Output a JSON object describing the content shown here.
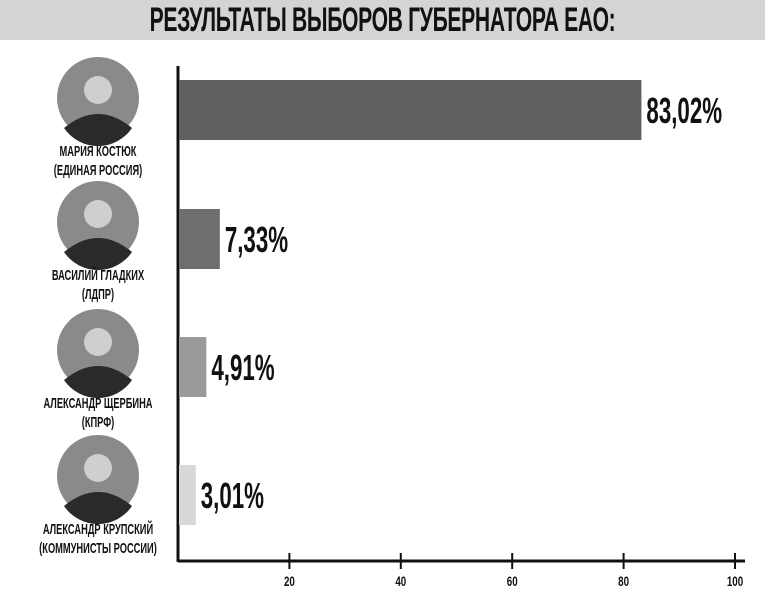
{
  "chart_data": {
    "type": "bar",
    "orientation": "horizontal",
    "title": "РЕЗУЛЬТАТЫ ВЫБОРОВ ГУБЕРНАТОРА ЕАО:",
    "categories": [
      {
        "name": "МАРИЯ КОСТЮК",
        "party": "(ЕДИНАЯ РОССИЯ)"
      },
      {
        "name": "ВАСИЛИЙ ГЛАДКИХ",
        "party": "(ЛДПР)"
      },
      {
        "name": "АЛЕКСАНДР ЩЕРБИНА",
        "party": "(КПРФ)"
      },
      {
        "name": "АЛЕКСАНДР КРУПСКИЙ",
        "party": "(КОММУНИСТЫ РОССИИ)"
      }
    ],
    "values": [
      83.02,
      7.33,
      4.91,
      3.01
    ],
    "labels": [
      "83,02%",
      "7,33%",
      "4,91%",
      "3,01%"
    ],
    "colors": [
      "#606060",
      "#6e6e6e",
      "#9a9a9a",
      "#d8d8d8"
    ],
    "xlim": [
      0,
      100
    ],
    "xticks": [
      20,
      40,
      60,
      80,
      100
    ],
    "grid": false,
    "header_color": "#d4d4d4"
  }
}
